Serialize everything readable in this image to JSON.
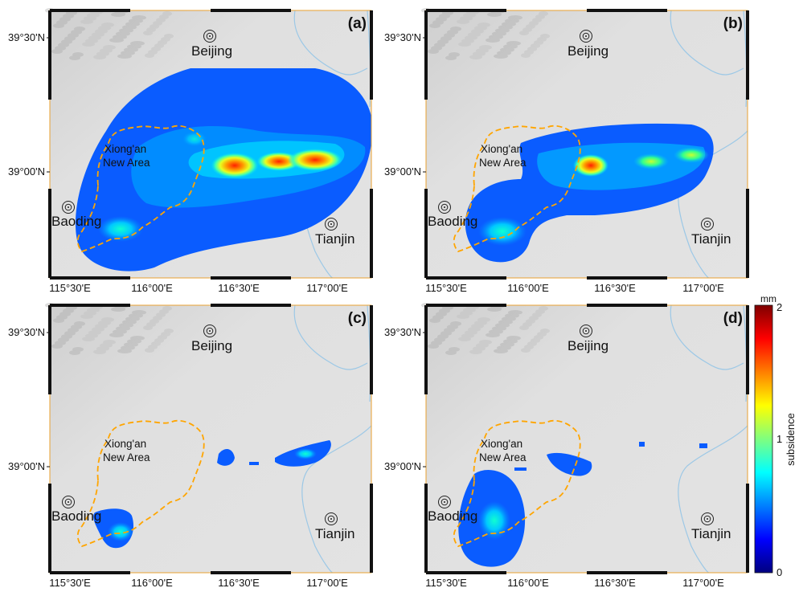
{
  "panels": [
    {
      "tag": "(a)"
    },
    {
      "tag": "(b)"
    },
    {
      "tag": "(c)"
    },
    {
      "tag": "(d)"
    }
  ],
  "x_ticks": [
    "115°30'E",
    "116°00'E",
    "116°30'E",
    "117°00'E"
  ],
  "y_ticks": [
    "39°30'N",
    "39°00'N"
  ],
  "cities": {
    "beijing": "Beijing",
    "baoding": "Baoding",
    "tianjin": "Tianjin"
  },
  "new_area": {
    "line1": "Xiong'an",
    "line2": "New Area"
  },
  "colorbar": {
    "unit": "mm",
    "label": "subsidence",
    "ticks": [
      "2",
      "1",
      "0"
    ],
    "range": [
      0,
      2
    ],
    "colormap": [
      "#00007f",
      "#0000ff",
      "#007fff",
      "#00ffff",
      "#7fff7f",
      "#ffff00",
      "#ff7f00",
      "#ff0000",
      "#7f0000"
    ]
  },
  "colors": {
    "basemap": "#dedede",
    "river": "#9cc8e6",
    "boundary": "#ffa500",
    "frame": "#111111"
  }
}
